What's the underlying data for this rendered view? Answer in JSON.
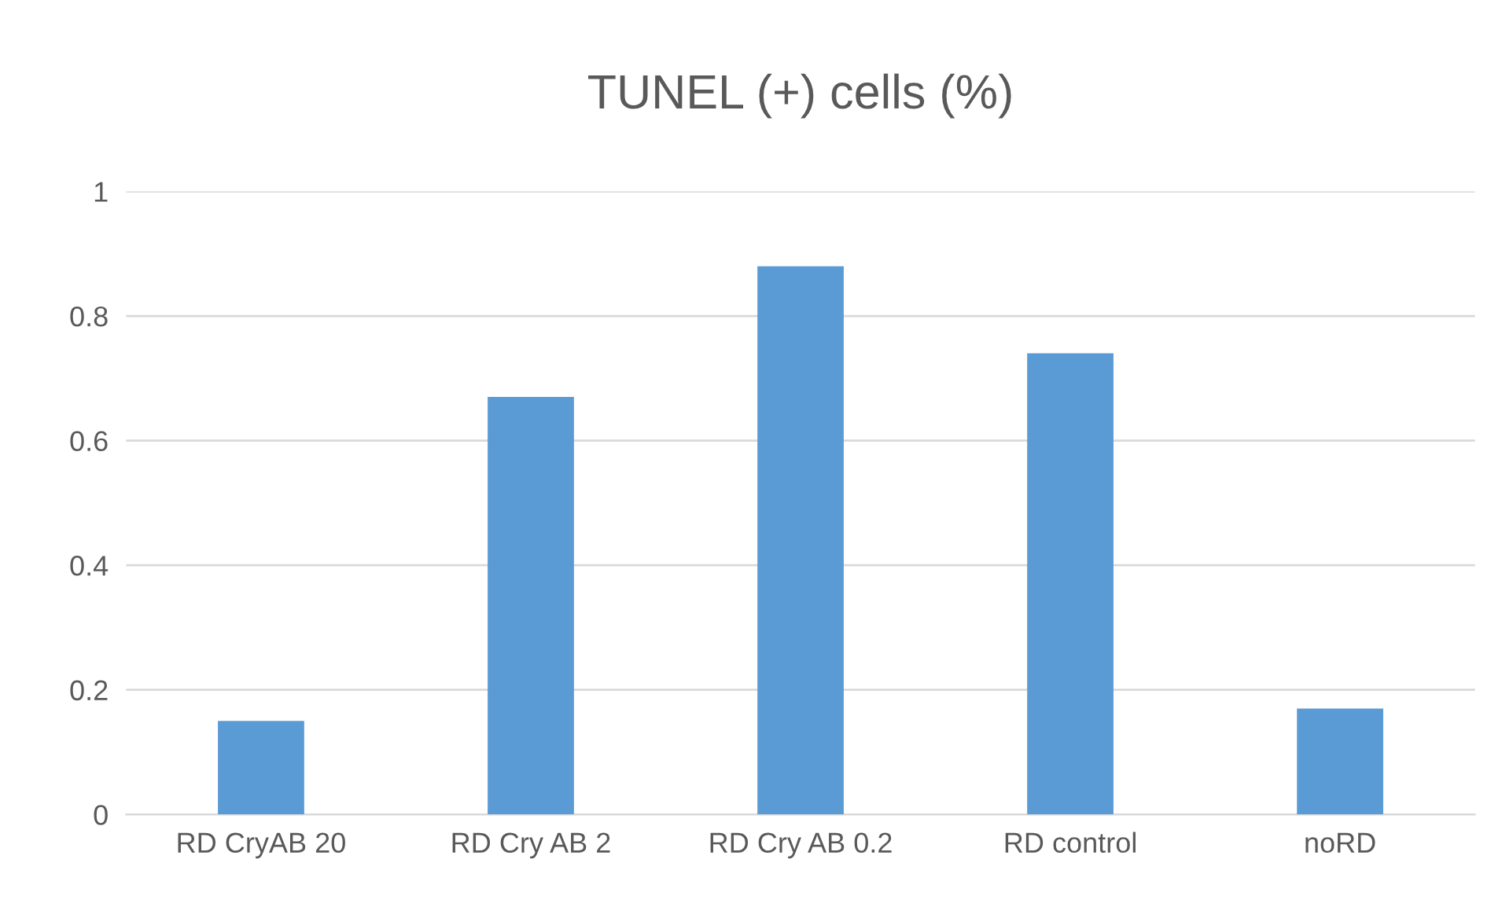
{
  "chart_data": {
    "type": "bar",
    "title": "TUNEL (+) cells (%)",
    "categories": [
      "RD CryAB 20",
      "RD Cry AB 2",
      "RD Cry AB 0.2",
      "RD control",
      "noRD"
    ],
    "values": [
      0.15,
      0.67,
      0.88,
      0.74,
      0.17
    ],
    "color": "#5b9bd5",
    "ylim": [
      0,
      1
    ],
    "yticks": [
      0,
      0.2,
      0.4,
      0.6,
      0.8,
      1
    ],
    "grid": "y",
    "legend": false
  }
}
